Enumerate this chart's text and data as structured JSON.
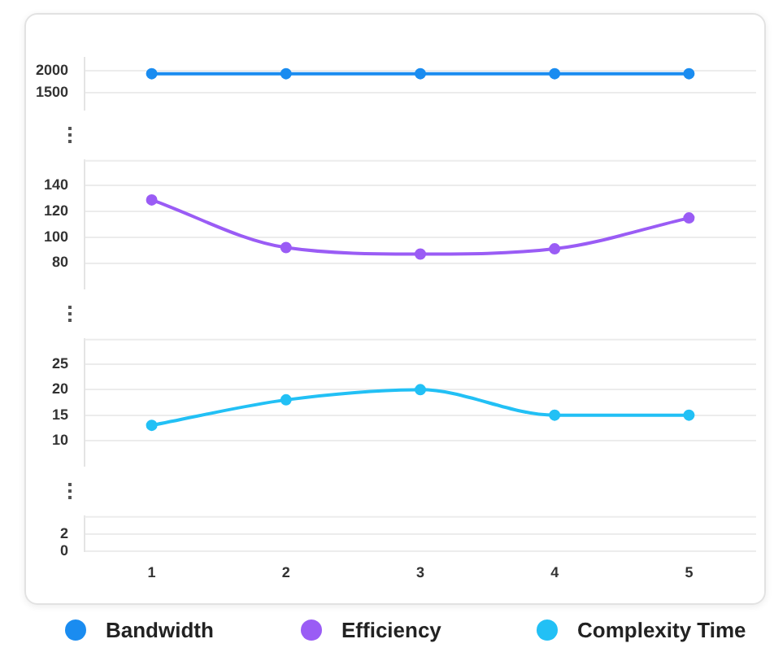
{
  "chart_data": [
    {
      "type": "line",
      "categories": [
        "1",
        "2",
        "3",
        "4",
        "5"
      ],
      "ylim": [
        1100,
        2300
      ],
      "yticks": [
        1500,
        2000
      ],
      "grid": "y",
      "tick_labels": "y",
      "marker": "circle",
      "legend": "bottom",
      "series": [
        {
          "name": "Bandwidth",
          "color": "#1a8cf0",
          "values": [
            1930,
            1930,
            1930,
            1930,
            1930
          ]
        }
      ]
    },
    {
      "type": "line",
      "categories": [
        "1",
        "2",
        "3",
        "4",
        "5"
      ],
      "ylim": [
        60,
        160
      ],
      "yticks": [
        80,
        100,
        120,
        140
      ],
      "grid": "y",
      "tick_labels": "y",
      "marker": "circle",
      "legend": "bottom",
      "series": [
        {
          "name": "Efficiency",
          "color": "#9a5cf5",
          "values": [
            129,
            92,
            87,
            91,
            115
          ]
        }
      ]
    },
    {
      "type": "line",
      "categories": [
        "1",
        "2",
        "3",
        "4",
        "5"
      ],
      "ylim": [
        5,
        30
      ],
      "yticks": [
        10,
        15,
        20,
        25
      ],
      "grid": "y",
      "tick_labels": "y",
      "marker": "circle",
      "legend": "bottom",
      "series": [
        {
          "name": "Complexity Time",
          "color": "#22c0f5",
          "values": [
            13,
            18,
            20,
            15,
            15
          ]
        }
      ]
    },
    {
      "type": "line",
      "categories": [
        "1",
        "2",
        "3",
        "4",
        "5"
      ],
      "ylim": [
        0,
        4
      ],
      "yticks": [
        0,
        2
      ],
      "grid": "y"
    }
  ]
}
